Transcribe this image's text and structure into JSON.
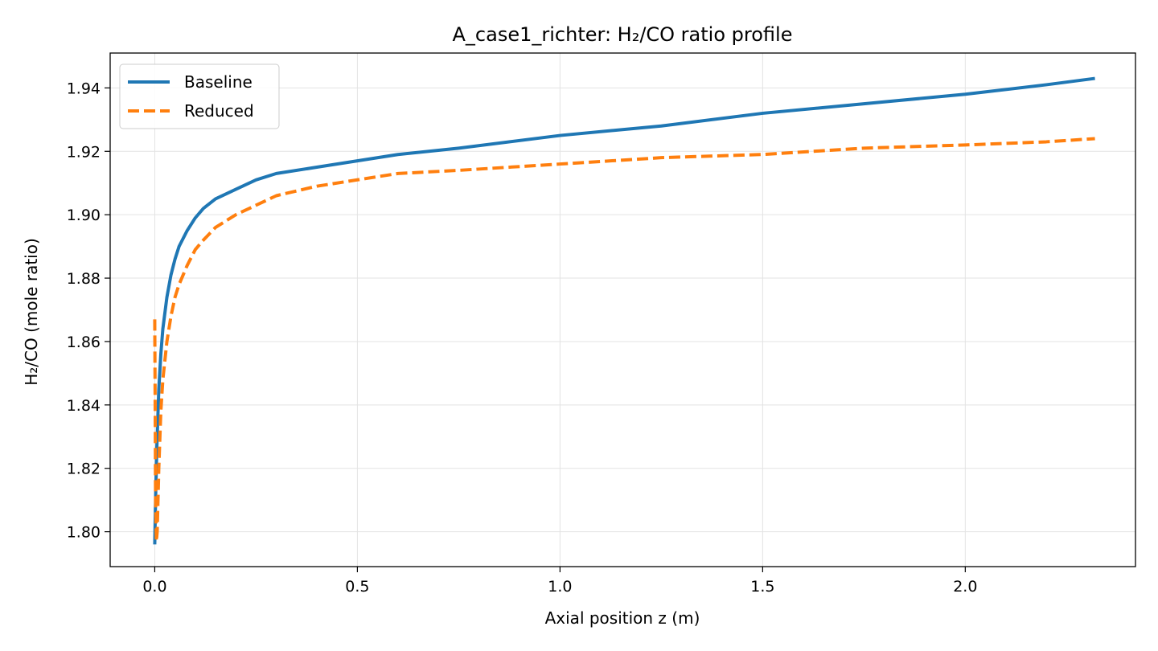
{
  "chart_data": {
    "type": "line",
    "title": "A_case1_richter: H₂/CO ratio profile",
    "xlabel": "Axial position z (m)",
    "ylabel": "H₂/CO (mole ratio)",
    "xlim": [
      -0.11,
      2.42
    ],
    "ylim": [
      1.789,
      1.951
    ],
    "xticks": [
      0.0,
      0.5,
      1.0,
      1.5,
      2.0
    ],
    "xtick_labels": [
      "0.0",
      "0.5",
      "1.0",
      "1.5",
      "2.0"
    ],
    "yticks": [
      1.8,
      1.82,
      1.84,
      1.86,
      1.88,
      1.9,
      1.92,
      1.94
    ],
    "ytick_labels": [
      "1.80",
      "1.82",
      "1.84",
      "1.86",
      "1.88",
      "1.90",
      "1.92",
      "1.94"
    ],
    "grid": true,
    "legend_position": "top-left",
    "series": [
      {
        "name": "Baseline",
        "color": "#1f77b4",
        "style": "solid",
        "x": [
          0.0,
          0.002,
          0.005,
          0.01,
          0.015,
          0.02,
          0.03,
          0.04,
          0.05,
          0.06,
          0.08,
          0.1,
          0.12,
          0.15,
          0.2,
          0.25,
          0.3,
          0.4,
          0.5,
          0.6,
          0.75,
          1.0,
          1.25,
          1.5,
          1.75,
          2.0,
          2.2,
          2.32
        ],
        "y": [
          1.796,
          1.81,
          1.826,
          1.845,
          1.856,
          1.864,
          1.874,
          1.881,
          1.886,
          1.89,
          1.895,
          1.899,
          1.902,
          1.905,
          1.908,
          1.911,
          1.913,
          1.915,
          1.917,
          1.919,
          1.921,
          1.925,
          1.928,
          1.932,
          1.935,
          1.938,
          1.941,
          1.943
        ]
      },
      {
        "name": "Reduced",
        "color": "#ff7f0e",
        "style": "dashed",
        "x": [
          0.0,
          0.001,
          0.002,
          0.004,
          0.006,
          0.008,
          0.01,
          0.015,
          0.02,
          0.03,
          0.04,
          0.05,
          0.06,
          0.08,
          0.1,
          0.12,
          0.15,
          0.2,
          0.25,
          0.3,
          0.4,
          0.5,
          0.6,
          0.75,
          1.0,
          1.25,
          1.5,
          1.75,
          2.0,
          2.2,
          2.32
        ],
        "y": [
          1.867,
          1.84,
          1.81,
          1.797,
          1.8,
          1.81,
          1.82,
          1.838,
          1.848,
          1.86,
          1.868,
          1.874,
          1.878,
          1.884,
          1.889,
          1.892,
          1.896,
          1.9,
          1.903,
          1.906,
          1.909,
          1.911,
          1.913,
          1.914,
          1.916,
          1.918,
          1.919,
          1.921,
          1.922,
          1.923,
          1.924
        ]
      }
    ]
  }
}
